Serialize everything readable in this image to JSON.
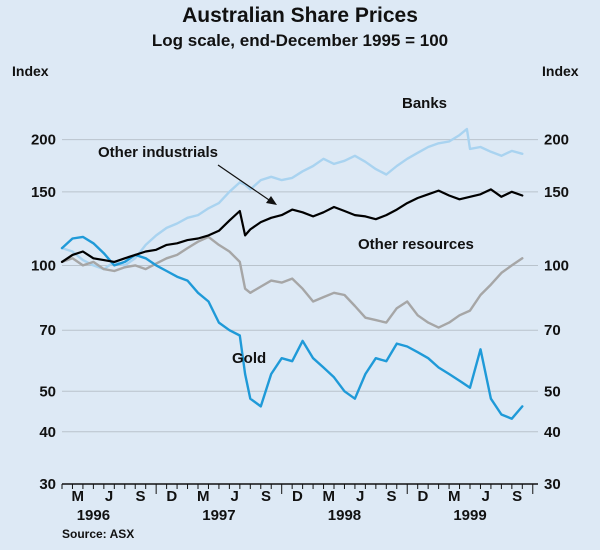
{
  "chart_data": {
    "type": "line",
    "title": "Australian Share Prices",
    "subtitle": "Log scale, end-December 1995 = 100",
    "ylabel_left": "Index",
    "ylabel_right": "Index",
    "yscale": "log",
    "ylim": [
      30,
      260
    ],
    "yticks": [
      30,
      40,
      50,
      70,
      100,
      150,
      200
    ],
    "xlim": [
      0,
      45.5
    ],
    "x_months": [
      "M",
      "J",
      "S",
      "D",
      "M",
      "J",
      "S",
      "D",
      "M",
      "J",
      "S",
      "D",
      "M",
      "J",
      "S"
    ],
    "x_years": [
      "1996",
      "1997",
      "1998",
      "1999"
    ],
    "source": "Source: ASX",
    "colors": {
      "banks": "#a9d3f0",
      "other_industrials": "#000000",
      "other_resources": "#a6a6a6",
      "gold": "#1f9ad8",
      "background": "#dde9f5",
      "gridline": "#b9c3cc"
    },
    "series": [
      {
        "key": "banks",
        "name": "Banks",
        "x": [
          0,
          1,
          2,
          3,
          4,
          5,
          6,
          7,
          8,
          9,
          10,
          11,
          12,
          13,
          14,
          15,
          16,
          17,
          17.5,
          18,
          19,
          20,
          21,
          22,
          23,
          24,
          25,
          26,
          27,
          28,
          29,
          30,
          31,
          32,
          33,
          34,
          35,
          36,
          37,
          38,
          38.7,
          39,
          40,
          41,
          42,
          43,
          44
        ],
        "values": [
          110,
          108,
          103,
          100,
          98,
          102,
          100,
          104,
          112,
          118,
          123,
          126,
          130,
          132,
          137,
          141,
          150,
          158,
          156,
          152,
          160,
          163,
          160,
          162,
          168,
          173,
          180,
          175,
          178,
          183,
          177,
          170,
          165,
          173,
          180,
          186,
          192,
          196,
          198,
          205,
          212,
          190,
          192,
          187,
          183,
          188,
          185
        ]
      },
      {
        "key": "other_industrials",
        "name": "Other industrials",
        "x": [
          0,
          1,
          2,
          3,
          4,
          5,
          6,
          7,
          8,
          9,
          10,
          11,
          12,
          13,
          14,
          15,
          16,
          17,
          17.5,
          18,
          19,
          20,
          21,
          22,
          23,
          24,
          25,
          26,
          27,
          28,
          29,
          30,
          31,
          32,
          33,
          34,
          35,
          36,
          37,
          38,
          39,
          40,
          41,
          42,
          43,
          44
        ],
        "values": [
          102,
          106,
          108,
          104,
          103,
          102,
          104,
          106,
          108,
          109,
          112,
          113,
          115,
          116,
          118,
          121,
          128,
          135,
          118,
          122,
          127,
          130,
          132,
          136,
          134,
          131,
          134,
          138,
          135,
          132,
          131,
          129,
          132,
          136,
          141,
          145,
          148,
          151,
          147,
          144,
          146,
          148,
          152,
          146,
          150,
          147
        ]
      },
      {
        "key": "other_resources",
        "name": "Other resources",
        "x": [
          0,
          1,
          2,
          3,
          4,
          5,
          6,
          7,
          8,
          9,
          10,
          11,
          12,
          13,
          14,
          15,
          16,
          17,
          17.5,
          18,
          19,
          20,
          21,
          22,
          23,
          24,
          25,
          26,
          27,
          28,
          29,
          30,
          31,
          32,
          33,
          34,
          35,
          36,
          37,
          38,
          39,
          40,
          41,
          42,
          43,
          44
        ],
        "values": [
          102,
          104,
          100,
          102,
          98,
          97,
          99,
          100,
          98,
          101,
          104,
          106,
          110,
          114,
          117,
          112,
          108,
          102,
          88,
          86,
          89,
          92,
          91,
          93,
          88,
          82,
          84,
          86,
          85,
          80,
          75,
          74,
          73,
          79,
          82,
          76,
          73,
          71,
          73,
          76,
          78,
          85,
          90,
          96,
          100,
          104
        ]
      },
      {
        "key": "gold",
        "name": "Gold",
        "x": [
          0,
          1,
          2,
          3,
          4,
          5,
          6,
          7,
          8,
          9,
          10,
          11,
          12,
          13,
          14,
          15,
          16,
          17,
          17.5,
          18,
          19,
          20,
          21,
          22,
          23,
          24,
          25,
          26,
          27,
          28,
          29,
          30,
          31,
          32,
          33,
          34,
          35,
          36,
          37,
          38,
          39,
          40,
          41,
          42,
          43,
          44
        ],
        "values": [
          110,
          116,
          117,
          113,
          107,
          100,
          102,
          106,
          104,
          100,
          97,
          94,
          92,
          86,
          82,
          73,
          70,
          68,
          55,
          48,
          46,
          55,
          60,
          59,
          66,
          60,
          57,
          54,
          50,
          48,
          55,
          60,
          59,
          65,
          64,
          62,
          60,
          57,
          55,
          53,
          51,
          63,
          48,
          44,
          43,
          46
        ]
      }
    ],
    "labels": {
      "banks": "Banks",
      "other_industrials": "Other industrials",
      "other_resources": "Other resources",
      "gold": "Gold"
    }
  }
}
